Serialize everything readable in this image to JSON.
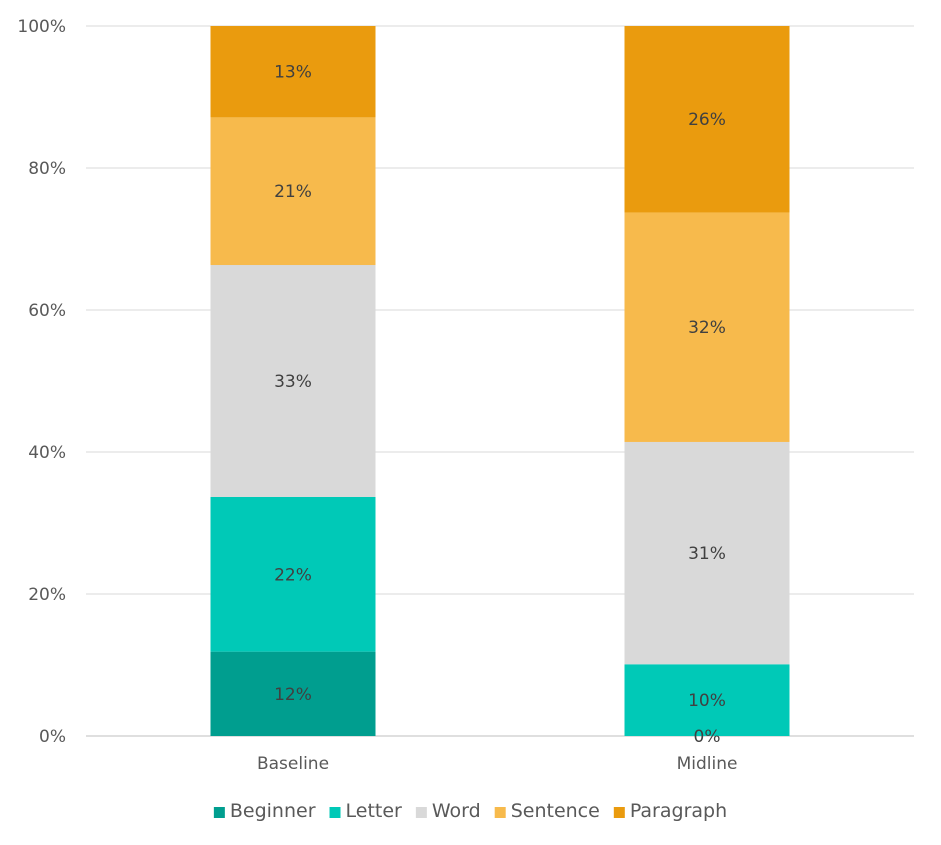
{
  "chart_data": {
    "type": "bar",
    "stacked": "percent",
    "categories": [
      "Baseline",
      "Midline"
    ],
    "series": [
      {
        "name": "Beginner",
        "color": "#009E8F",
        "values": [
          12,
          0
        ],
        "labels": [
          "12%",
          "0%"
        ]
      },
      {
        "name": "Letter",
        "color": "#00C9B7",
        "values": [
          22,
          10
        ],
        "labels": [
          "22%",
          "10%"
        ]
      },
      {
        "name": "Word",
        "color": "#D9D9D9",
        "values": [
          33,
          31
        ],
        "labels": [
          "33%",
          "31%"
        ]
      },
      {
        "name": "Sentence",
        "color": "#F7BA4C",
        "values": [
          21,
          32
        ],
        "labels": [
          "21%",
          "32%"
        ]
      },
      {
        "name": "Paragraph",
        "color": "#EA9B0E",
        "values": [
          13,
          26
        ],
        "labels": [
          "13%",
          "26%"
        ]
      }
    ],
    "ylim": [
      0,
      100
    ],
    "yticks": [
      "0%",
      "20%",
      "40%",
      "60%",
      "80%",
      "100%"
    ],
    "grid": true,
    "legend_position": "bottom"
  }
}
